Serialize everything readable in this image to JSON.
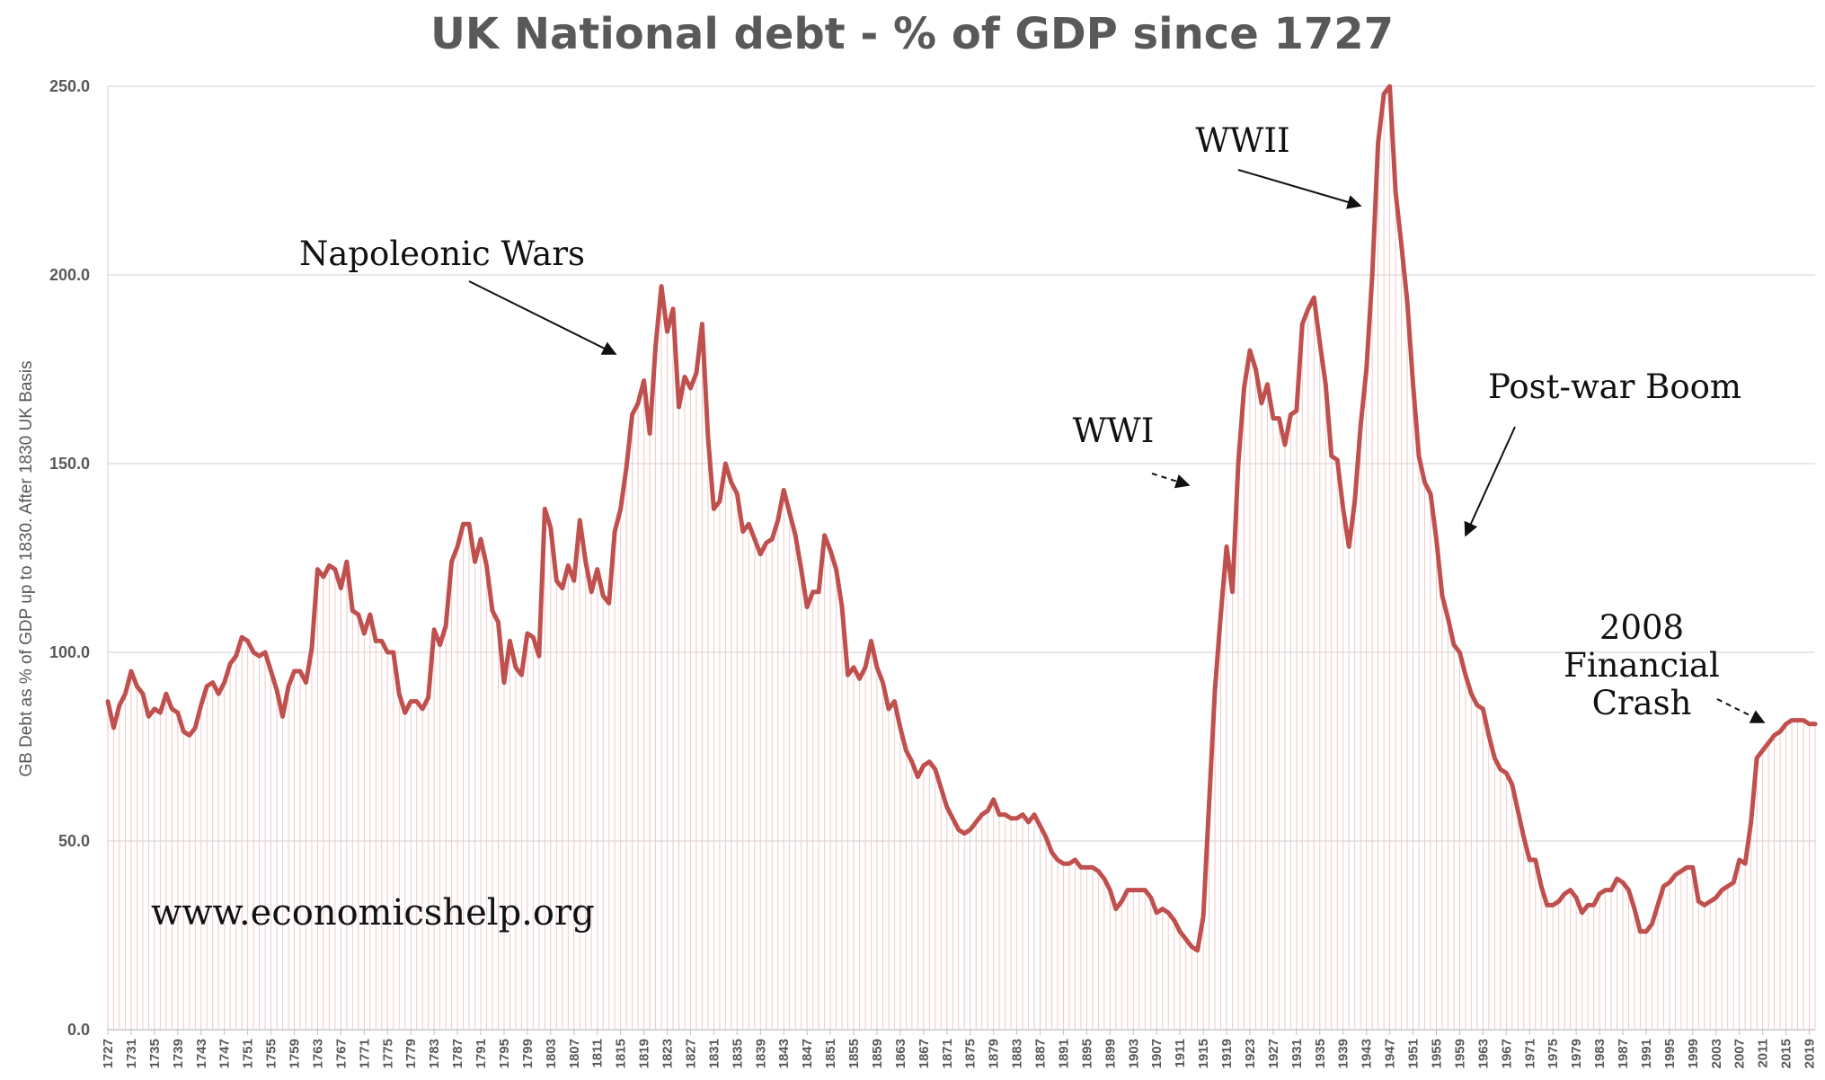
{
  "chart_data": {
    "type": "line",
    "title": "UK National debt - % of GDP since 1727",
    "xlabel": "",
    "ylabel": "GB Debt as % of GDP up to 1830. After 1830 UK Basis",
    "xlim": [
      1727,
      2020
    ],
    "ylim": [
      0,
      250
    ],
    "yticks": [
      "0.0",
      "50.0",
      "100.0",
      "150.0",
      "200.0",
      "250.0"
    ],
    "xticks": [
      "1727",
      "1731",
      "1735",
      "1739",
      "1743",
      "1747",
      "1751",
      "1755",
      "1759",
      "1763",
      "1767",
      "1771",
      "1775",
      "1779",
      "1783",
      "1787",
      "1791",
      "1795",
      "1799",
      "1803",
      "1807",
      "1811",
      "1815",
      "1819",
      "1823",
      "1827",
      "1831",
      "1835",
      "1839",
      "1843",
      "1847",
      "1851",
      "1855",
      "1859",
      "1863",
      "1867",
      "1871",
      "1875",
      "1879",
      "1883",
      "1887",
      "1891",
      "1895",
      "1899",
      "1903",
      "1907",
      "1911",
      "1915",
      "1919",
      "1923",
      "1927",
      "1931",
      "1935",
      "1939",
      "1943",
      "1947",
      "1951",
      "1955",
      "1959",
      "1963",
      "1967",
      "1971",
      "1975",
      "1979",
      "1983",
      "1987",
      "1991",
      "1995",
      "1999",
      "2003",
      "2007",
      "2011",
      "2015",
      "2019"
    ],
    "grid": true,
    "line_color": "#c0504d",
    "series": [
      {
        "points": [
          [
            1727,
            87
          ],
          [
            1728,
            80
          ],
          [
            1729,
            86
          ],
          [
            1730,
            89
          ],
          [
            1731,
            95
          ],
          [
            1732,
            91
          ],
          [
            1733,
            89
          ],
          [
            1734,
            83
          ],
          [
            1735,
            85
          ],
          [
            1736,
            84
          ],
          [
            1737,
            89
          ],
          [
            1738,
            85
          ],
          [
            1739,
            84
          ],
          [
            1740,
            79
          ],
          [
            1741,
            78
          ],
          [
            1742,
            80
          ],
          [
            1743,
            86
          ],
          [
            1744,
            91
          ],
          [
            1745,
            92
          ],
          [
            1746,
            89
          ],
          [
            1747,
            92
          ],
          [
            1748,
            97
          ],
          [
            1749,
            99
          ],
          [
            1750,
            104
          ],
          [
            1751,
            103
          ],
          [
            1752,
            100
          ],
          [
            1753,
            99
          ],
          [
            1754,
            100
          ],
          [
            1755,
            95
          ],
          [
            1756,
            90
          ],
          [
            1757,
            83
          ],
          [
            1758,
            91
          ],
          [
            1759,
            95
          ],
          [
            1760,
            95
          ],
          [
            1761,
            92
          ],
          [
            1762,
            101
          ],
          [
            1763,
            122
          ],
          [
            1764,
            120
          ],
          [
            1765,
            123
          ],
          [
            1766,
            122
          ],
          [
            1767,
            117
          ],
          [
            1768,
            124
          ],
          [
            1769,
            111
          ],
          [
            1770,
            110
          ],
          [
            1771,
            105
          ],
          [
            1772,
            110
          ],
          [
            1773,
            103
          ],
          [
            1774,
            103
          ],
          [
            1775,
            100
          ],
          [
            1776,
            100
          ],
          [
            1777,
            89
          ],
          [
            1778,
            84
          ],
          [
            1779,
            87
          ],
          [
            1780,
            87
          ],
          [
            1781,
            85
          ],
          [
            1782,
            88
          ],
          [
            1783,
            106
          ],
          [
            1784,
            102
          ],
          [
            1785,
            107
          ],
          [
            1786,
            124
          ],
          [
            1787,
            128
          ],
          [
            1788,
            134
          ],
          [
            1789,
            134
          ],
          [
            1790,
            124
          ],
          [
            1791,
            130
          ],
          [
            1792,
            123
          ],
          [
            1793,
            111
          ],
          [
            1794,
            108
          ],
          [
            1795,
            92
          ],
          [
            1796,
            103
          ],
          [
            1797,
            96
          ],
          [
            1798,
            94
          ],
          [
            1799,
            105
          ],
          [
            1800,
            104
          ],
          [
            1801,
            99
          ],
          [
            1802,
            138
          ],
          [
            1803,
            133
          ],
          [
            1804,
            119
          ],
          [
            1805,
            117
          ],
          [
            1806,
            123
          ],
          [
            1807,
            119
          ],
          [
            1808,
            135
          ],
          [
            1809,
            124
          ],
          [
            1810,
            116
          ],
          [
            1811,
            122
          ],
          [
            1812,
            115
          ],
          [
            1813,
            113
          ],
          [
            1814,
            132
          ],
          [
            1815,
            138
          ],
          [
            1816,
            149
          ],
          [
            1817,
            163
          ],
          [
            1818,
            166
          ],
          [
            1819,
            172
          ],
          [
            1820,
            158
          ],
          [
            1821,
            181
          ],
          [
            1822,
            197
          ],
          [
            1823,
            185
          ],
          [
            1824,
            191
          ],
          [
            1825,
            165
          ],
          [
            1826,
            173
          ],
          [
            1827,
            170
          ],
          [
            1828,
            174
          ],
          [
            1829,
            187
          ],
          [
            1830,
            157
          ],
          [
            1831,
            138
          ],
          [
            1832,
            140
          ],
          [
            1833,
            150
          ],
          [
            1834,
            145
          ],
          [
            1835,
            142
          ],
          [
            1836,
            132
          ],
          [
            1837,
            134
          ],
          [
            1838,
            130
          ],
          [
            1839,
            126
          ],
          [
            1840,
            129
          ],
          [
            1841,
            130
          ],
          [
            1842,
            135
          ],
          [
            1843,
            143
          ],
          [
            1844,
            137
          ],
          [
            1845,
            131
          ],
          [
            1846,
            122
          ],
          [
            1847,
            112
          ],
          [
            1848,
            116
          ],
          [
            1849,
            116
          ],
          [
            1850,
            131
          ],
          [
            1851,
            127
          ],
          [
            1852,
            122
          ],
          [
            1853,
            112
          ],
          [
            1854,
            94
          ],
          [
            1855,
            96
          ],
          [
            1856,
            93
          ],
          [
            1857,
            96
          ],
          [
            1858,
            103
          ],
          [
            1859,
            96
          ],
          [
            1860,
            92
          ],
          [
            1861,
            85
          ],
          [
            1862,
            87
          ],
          [
            1863,
            80
          ],
          [
            1864,
            74
          ],
          [
            1865,
            71
          ],
          [
            1866,
            67
          ],
          [
            1867,
            70
          ],
          [
            1868,
            71
          ],
          [
            1869,
            69
          ],
          [
            1870,
            64
          ],
          [
            1871,
            59
          ],
          [
            1872,
            56
          ],
          [
            1873,
            53
          ],
          [
            1874,
            52
          ],
          [
            1875,
            53
          ],
          [
            1876,
            55
          ],
          [
            1877,
            57
          ],
          [
            1878,
            58
          ],
          [
            1879,
            61
          ],
          [
            1880,
            57
          ],
          [
            1881,
            57
          ],
          [
            1882,
            56
          ],
          [
            1883,
            56
          ],
          [
            1884,
            57
          ],
          [
            1885,
            55
          ],
          [
            1886,
            57
          ],
          [
            1887,
            54
          ],
          [
            1888,
            51
          ],
          [
            1889,
            47
          ],
          [
            1890,
            45
          ],
          [
            1891,
            44
          ],
          [
            1892,
            44
          ],
          [
            1893,
            45
          ],
          [
            1894,
            43
          ],
          [
            1895,
            43
          ],
          [
            1896,
            43
          ],
          [
            1897,
            42
          ],
          [
            1898,
            40
          ],
          [
            1899,
            37
          ],
          [
            1900,
            32
          ],
          [
            1901,
            34
          ],
          [
            1902,
            37
          ],
          [
            1903,
            37
          ],
          [
            1904,
            37
          ],
          [
            1905,
            37
          ],
          [
            1906,
            35
          ],
          [
            1907,
            31
          ],
          [
            1908,
            32
          ],
          [
            1909,
            31
          ],
          [
            1910,
            29
          ],
          [
            1911,
            26
          ],
          [
            1912,
            24
          ],
          [
            1913,
            22
          ],
          [
            1914,
            21
          ],
          [
            1915,
            30
          ],
          [
            1916,
            60
          ],
          [
            1917,
            90
          ],
          [
            1918,
            110
          ],
          [
            1919,
            128
          ],
          [
            1920,
            116
          ],
          [
            1921,
            150
          ],
          [
            1922,
            170
          ],
          [
            1923,
            180
          ],
          [
            1924,
            175
          ],
          [
            1925,
            166
          ],
          [
            1926,
            171
          ],
          [
            1927,
            162
          ],
          [
            1928,
            162
          ],
          [
            1929,
            155
          ],
          [
            1930,
            163
          ],
          [
            1931,
            164
          ],
          [
            1932,
            187
          ],
          [
            1933,
            191
          ],
          [
            1934,
            194
          ],
          [
            1935,
            182
          ],
          [
            1936,
            171
          ],
          [
            1937,
            152
          ],
          [
            1938,
            151
          ],
          [
            1939,
            138
          ],
          [
            1940,
            128
          ],
          [
            1941,
            140
          ],
          [
            1942,
            160
          ],
          [
            1943,
            175
          ],
          [
            1944,
            200
          ],
          [
            1945,
            235
          ],
          [
            1946,
            248
          ],
          [
            1947,
            250
          ],
          [
            1948,
            222
          ],
          [
            1949,
            208
          ],
          [
            1950,
            193
          ],
          [
            1951,
            171
          ],
          [
            1952,
            152
          ],
          [
            1953,
            145
          ],
          [
            1954,
            142
          ],
          [
            1955,
            130
          ],
          [
            1956,
            115
          ],
          [
            1957,
            109
          ],
          [
            1958,
            102
          ],
          [
            1959,
            100
          ],
          [
            1960,
            94
          ],
          [
            1961,
            89
          ],
          [
            1962,
            86
          ],
          [
            1963,
            85
          ],
          [
            1964,
            78
          ],
          [
            1965,
            72
          ],
          [
            1966,
            69
          ],
          [
            1967,
            68
          ],
          [
            1968,
            65
          ],
          [
            1969,
            58
          ],
          [
            1970,
            51
          ],
          [
            1971,
            45
          ],
          [
            1972,
            45
          ],
          [
            1973,
            38
          ],
          [
            1974,
            33
          ],
          [
            1975,
            33
          ],
          [
            1976,
            34
          ],
          [
            1977,
            36
          ],
          [
            1978,
            37
          ],
          [
            1979,
            35
          ],
          [
            1980,
            31
          ],
          [
            1981,
            33
          ],
          [
            1982,
            33
          ],
          [
            1983,
            36
          ],
          [
            1984,
            37
          ],
          [
            1985,
            37
          ],
          [
            1986,
            40
          ],
          [
            1987,
            39
          ],
          [
            1988,
            37
          ],
          [
            1989,
            32
          ],
          [
            1990,
            26
          ],
          [
            1991,
            26
          ],
          [
            1992,
            28
          ],
          [
            1993,
            33
          ],
          [
            1994,
            38
          ],
          [
            1995,
            39
          ],
          [
            1996,
            41
          ],
          [
            1997,
            42
          ],
          [
            1998,
            43
          ],
          [
            1999,
            43
          ],
          [
            2000,
            34
          ],
          [
            2001,
            33
          ],
          [
            2002,
            34
          ],
          [
            2003,
            35
          ],
          [
            2004,
            37
          ],
          [
            2005,
            38
          ],
          [
            2006,
            39
          ],
          [
            2007,
            45
          ],
          [
            2008,
            44
          ],
          [
            2009,
            55
          ],
          [
            2010,
            72
          ],
          [
            2011,
            74
          ],
          [
            2012,
            76
          ],
          [
            2013,
            78
          ],
          [
            2014,
            79
          ],
          [
            2015,
            81
          ],
          [
            2016,
            82
          ],
          [
            2017,
            82
          ],
          [
            2018,
            82
          ],
          [
            2019,
            81
          ],
          [
            2020,
            81
          ]
        ]
      }
    ],
    "annotations": [
      {
        "text": "Napoleonic Wars",
        "target": [
          1819,
          178
        ]
      },
      {
        "text": "WWII",
        "target": [
          1944,
          218
        ]
      },
      {
        "text": "WWI",
        "target": [
          1915,
          143
        ]
      },
      {
        "text": "Post-war Boom",
        "target": [
          1959,
          130
        ]
      },
      {
        "text": "2008",
        "target": null
      },
      {
        "text": "Financial",
        "target": null
      },
      {
        "text": "Crash",
        "target": [
          2011,
          82
        ]
      }
    ],
    "watermark": "www.economicshelp.org"
  }
}
